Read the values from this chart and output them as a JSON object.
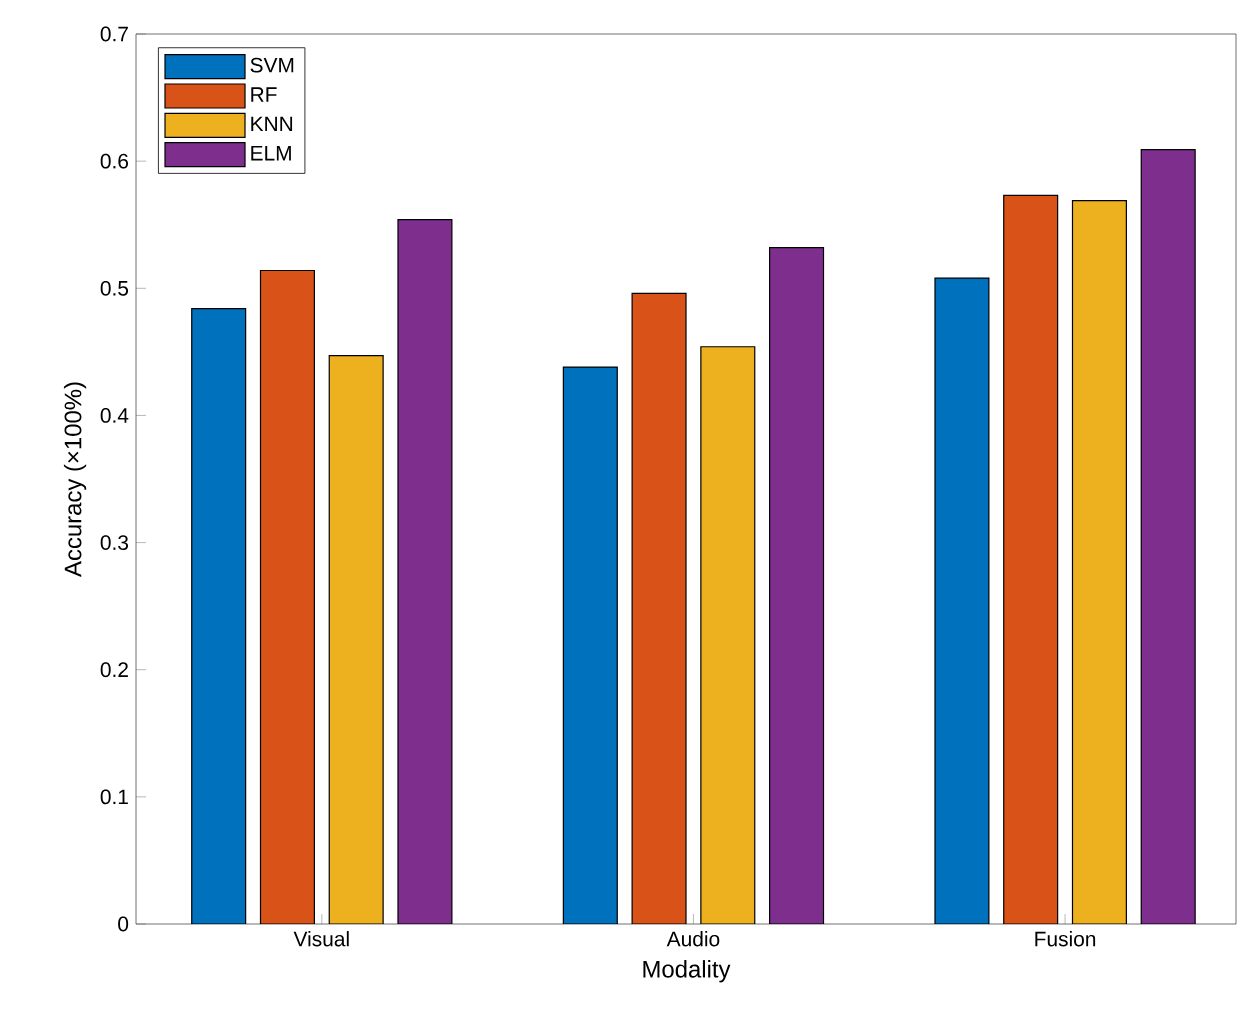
{
  "chart_data": {
    "type": "bar",
    "xlabel": "Modality",
    "ylabel": "Accuracy (×100%)",
    "categories": [
      "Visual",
      "Audio",
      "Fusion"
    ],
    "series": [
      {
        "name": "SVM",
        "color": "#0072bd",
        "values": [
          0.484,
          0.438,
          0.508
        ]
      },
      {
        "name": "RF",
        "color": "#d95319",
        "values": [
          0.514,
          0.496,
          0.573
        ]
      },
      {
        "name": "KNN",
        "color": "#edb120",
        "values": [
          0.447,
          0.454,
          0.569
        ]
      },
      {
        "name": "ELM",
        "color": "#7e2f8e",
        "values": [
          0.554,
          0.532,
          0.609
        ]
      }
    ],
    "ylim": [
      0,
      0.7
    ],
    "yticks": [
      0,
      0.1,
      0.2,
      0.3,
      0.4,
      0.5,
      0.6,
      0.7
    ],
    "legend": "top left",
    "grid": false
  }
}
